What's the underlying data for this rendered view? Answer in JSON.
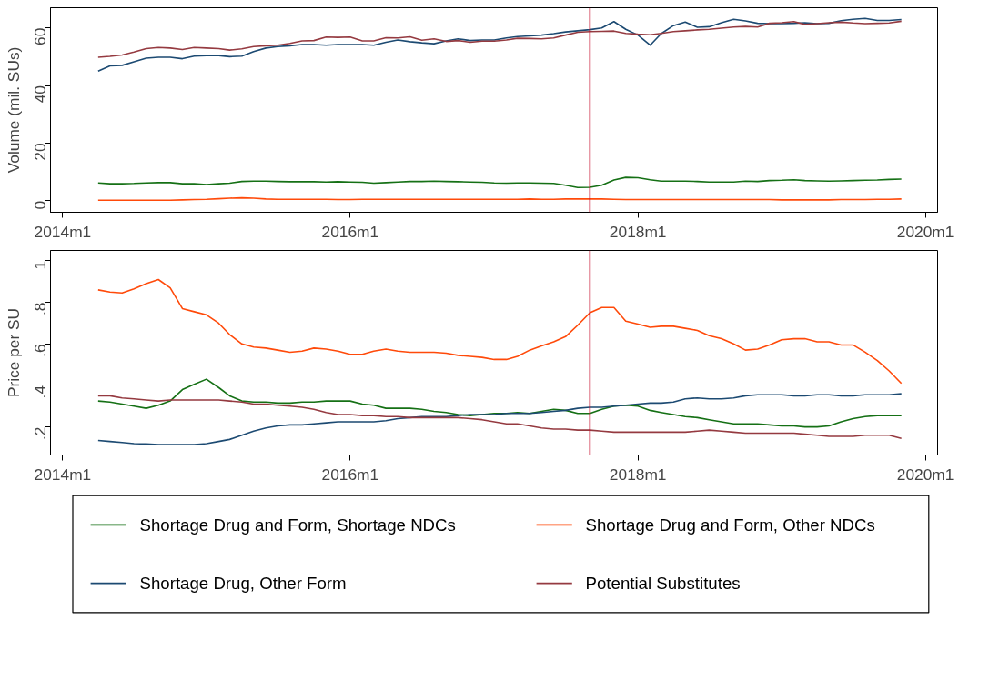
{
  "chart_data": [
    {
      "type": "line",
      "ylabel": "Volume (mil. SUs)",
      "x": [
        "2014-04",
        "2014-05",
        "2014-06",
        "2014-07",
        "2014-08",
        "2014-09",
        "2014-10",
        "2014-11",
        "2014-12",
        "2015-01",
        "2015-02",
        "2015-03",
        "2015-04",
        "2015-05",
        "2015-06",
        "2015-07",
        "2015-08",
        "2015-09",
        "2015-10",
        "2015-11",
        "2015-12",
        "2016-01",
        "2016-02",
        "2016-03",
        "2016-04",
        "2016-05",
        "2016-06",
        "2016-07",
        "2016-08",
        "2016-09",
        "2016-10",
        "2016-11",
        "2016-12",
        "2017-01",
        "2017-02",
        "2017-03",
        "2017-04",
        "2017-05",
        "2017-06",
        "2017-07",
        "2017-08",
        "2017-09",
        "2017-10",
        "2017-11",
        "2017-12",
        "2018-01",
        "2018-02",
        "2018-03",
        "2018-04",
        "2018-05",
        "2018-06",
        "2018-07",
        "2018-08",
        "2018-09",
        "2018-10",
        "2018-11",
        "2018-12",
        "2019-01",
        "2019-02",
        "2019-03",
        "2019-04",
        "2019-05",
        "2019-06",
        "2019-07",
        "2019-08",
        "2019-09",
        "2019-10",
        "2019-11"
      ],
      "xlim": [
        "2013-12",
        "2020-02"
      ],
      "ylim": [
        -4,
        67
      ],
      "xticks": [
        {
          "value": "2014-01",
          "label": "2014m1"
        },
        {
          "value": "2016-01",
          "label": "2016m1"
        },
        {
          "value": "2018-01",
          "label": "2018m1"
        },
        {
          "value": "2020-01",
          "label": "2020m1"
        }
      ],
      "yticks": [
        0,
        20,
        40,
        60
      ],
      "grid": false,
      "ref_lines": [
        {
          "axis": "x",
          "value": "2017-09",
          "color": "#c8102e"
        }
      ],
      "series": [
        {
          "color": "#157015",
          "values": [
            6.2,
            5.9,
            5.9,
            6.0,
            6.2,
            6.3,
            6.3,
            5.9,
            5.9,
            5.6,
            5.9,
            6.1,
            6.7,
            6.8,
            6.8,
            6.7,
            6.6,
            6.6,
            6.6,
            6.5,
            6.6,
            6.5,
            6.4,
            6.1,
            6.3,
            6.5,
            6.7,
            6.7,
            6.8,
            6.7,
            6.6,
            6.5,
            6.4,
            6.2,
            6.1,
            6.2,
            6.2,
            6.1,
            6.0,
            5.4,
            4.6,
            4.7,
            5.4,
            7.2,
            8.1,
            8.0,
            7.3,
            6.8,
            6.8,
            6.8,
            6.7,
            6.5,
            6.5,
            6.5,
            6.8,
            6.7,
            7.0,
            7.1,
            7.3,
            7.0,
            6.9,
            6.8,
            6.9,
            7.0,
            7.1,
            7.2,
            7.4,
            7.5
          ]
        },
        {
          "color": "#ff4a0a",
          "values": [
            0.2,
            0.2,
            0.2,
            0.2,
            0.2,
            0.2,
            0.2,
            0.3,
            0.4,
            0.5,
            0.7,
            0.9,
            1.0,
            0.9,
            0.6,
            0.5,
            0.5,
            0.5,
            0.5,
            0.5,
            0.4,
            0.4,
            0.5,
            0.5,
            0.5,
            0.5,
            0.5,
            0.5,
            0.5,
            0.5,
            0.5,
            0.5,
            0.5,
            0.5,
            0.5,
            0.5,
            0.6,
            0.5,
            0.5,
            0.6,
            0.6,
            0.6,
            0.6,
            0.5,
            0.4,
            0.4,
            0.4,
            0.4,
            0.4,
            0.4,
            0.4,
            0.4,
            0.4,
            0.4,
            0.4,
            0.4,
            0.4,
            0.3,
            0.3,
            0.3,
            0.3,
            0.3,
            0.4,
            0.4,
            0.4,
            0.5,
            0.5,
            0.6
          ]
        },
        {
          "color": "#1c4a72",
          "values": [
            45.0,
            46.8,
            47.0,
            48.2,
            49.5,
            49.8,
            49.8,
            49.3,
            50.2,
            50.4,
            50.4,
            50.0,
            50.2,
            51.8,
            53.0,
            53.5,
            53.8,
            54.2,
            54.2,
            54.0,
            54.2,
            54.2,
            54.2,
            54.0,
            55.0,
            55.8,
            55.2,
            54.8,
            54.5,
            55.5,
            56.2,
            55.6,
            55.8,
            55.8,
            56.5,
            57.0,
            57.2,
            57.5,
            58.0,
            58.6,
            59.0,
            59.4,
            60.0,
            62.2,
            59.5,
            57.5,
            54.0,
            58.0,
            60.8,
            62.0,
            60.2,
            60.4,
            61.8,
            63.0,
            62.4,
            61.6,
            61.5,
            61.5,
            61.6,
            61.8,
            61.5,
            61.6,
            62.5,
            63.0,
            63.3,
            62.6,
            62.6,
            62.9
          ]
        },
        {
          "color": "#953a40",
          "values": [
            49.8,
            50.1,
            50.6,
            51.6,
            52.8,
            53.2,
            53.0,
            52.5,
            53.2,
            53.0,
            52.8,
            52.3,
            52.7,
            53.5,
            53.8,
            54.0,
            54.6,
            55.5,
            55.6,
            56.8,
            56.7,
            56.8,
            55.5,
            55.5,
            56.6,
            56.5,
            56.9,
            55.7,
            56.2,
            55.3,
            55.6,
            55.0,
            55.4,
            55.4,
            55.8,
            56.4,
            56.3,
            56.2,
            56.5,
            57.5,
            58.5,
            58.7,
            58.8,
            58.9,
            58.1,
            57.8,
            57.6,
            58.1,
            58.7,
            59.0,
            59.3,
            59.5,
            59.9,
            60.3,
            60.5,
            60.3,
            61.6,
            61.8,
            62.2,
            61.2,
            61.5,
            61.8,
            62.0,
            61.7,
            61.5,
            61.6,
            61.7,
            62.3
          ]
        }
      ]
    },
    {
      "type": "line",
      "ylabel": "Price per SU",
      "x": [
        "2014-04",
        "2014-05",
        "2014-06",
        "2014-07",
        "2014-08",
        "2014-09",
        "2014-10",
        "2014-11",
        "2014-12",
        "2015-01",
        "2015-02",
        "2015-03",
        "2015-04",
        "2015-05",
        "2015-06",
        "2015-07",
        "2015-08",
        "2015-09",
        "2015-10",
        "2015-11",
        "2015-12",
        "2016-01",
        "2016-02",
        "2016-03",
        "2016-04",
        "2016-05",
        "2016-06",
        "2016-07",
        "2016-08",
        "2016-09",
        "2016-10",
        "2016-11",
        "2016-12",
        "2017-01",
        "2017-02",
        "2017-03",
        "2017-04",
        "2017-05",
        "2017-06",
        "2017-07",
        "2017-08",
        "2017-09",
        "2017-10",
        "2017-11",
        "2017-12",
        "2018-01",
        "2018-02",
        "2018-03",
        "2018-04",
        "2018-05",
        "2018-06",
        "2018-07",
        "2018-08",
        "2018-09",
        "2018-10",
        "2018-11",
        "2018-12",
        "2019-01",
        "2019-02",
        "2019-03",
        "2019-04",
        "2019-05",
        "2019-06",
        "2019-07",
        "2019-08",
        "2019-09",
        "2019-10",
        "2019-11"
      ],
      "xlim": [
        "2013-12",
        "2020-02"
      ],
      "ylim": [
        0.065,
        1.05
      ],
      "xticks": [
        {
          "value": "2014-01",
          "label": "2014m1"
        },
        {
          "value": "2016-01",
          "label": "2016m1"
        },
        {
          "value": "2018-01",
          "label": "2018m1"
        },
        {
          "value": "2020-01",
          "label": "2020m1"
        }
      ],
      "yticks": [
        {
          "value": 0.2,
          "label": ".2"
        },
        {
          "value": 0.4,
          "label": ".4"
        },
        {
          "value": 0.6,
          "label": ".6"
        },
        {
          "value": 0.8,
          "label": ".8"
        },
        1
      ],
      "grid": false,
      "legend": "bottom",
      "ref_lines": [
        {
          "axis": "x",
          "value": "2017-09",
          "color": "#c8102e"
        }
      ],
      "series": [
        {
          "name": "Shortage Drug and Form, Shortage NDCs",
          "color": "#157015",
          "values": [
            0.325,
            0.32,
            0.31,
            0.3,
            0.29,
            0.305,
            0.325,
            0.38,
            0.405,
            0.43,
            0.39,
            0.35,
            0.325,
            0.32,
            0.32,
            0.315,
            0.315,
            0.32,
            0.32,
            0.325,
            0.325,
            0.325,
            0.31,
            0.305,
            0.29,
            0.29,
            0.29,
            0.285,
            0.275,
            0.27,
            0.26,
            0.255,
            0.26,
            0.265,
            0.265,
            0.27,
            0.265,
            0.275,
            0.285,
            0.28,
            0.265,
            0.265,
            0.285,
            0.3,
            0.305,
            0.3,
            0.28,
            0.27,
            0.26,
            0.25,
            0.245,
            0.235,
            0.225,
            0.215,
            0.215,
            0.215,
            0.21,
            0.205,
            0.205,
            0.2,
            0.2,
            0.205,
            0.225,
            0.24,
            0.25,
            0.255,
            0.255,
            0.255
          ]
        },
        {
          "name": "Shortage Drug and Form, Other NDCs",
          "color": "#ff4a0a",
          "values": [
            0.86,
            0.85,
            0.845,
            0.865,
            0.89,
            0.91,
            0.87,
            0.77,
            0.755,
            0.74,
            0.7,
            0.645,
            0.6,
            0.585,
            0.58,
            0.57,
            0.56,
            0.565,
            0.58,
            0.575,
            0.565,
            0.55,
            0.55,
            0.565,
            0.575,
            0.565,
            0.56,
            0.56,
            0.56,
            0.555,
            0.545,
            0.54,
            0.535,
            0.525,
            0.525,
            0.54,
            0.57,
            0.59,
            0.61,
            0.635,
            0.69,
            0.75,
            0.775,
            0.775,
            0.71,
            0.695,
            0.68,
            0.685,
            0.685,
            0.675,
            0.665,
            0.64,
            0.625,
            0.6,
            0.57,
            0.575,
            0.595,
            0.62,
            0.625,
            0.625,
            0.61,
            0.61,
            0.595,
            0.595,
            0.56,
            0.52,
            0.47,
            0.41
          ]
        },
        {
          "name": "Shortage Drug, Other Form",
          "color": "#1c4a72",
          "values": [
            0.135,
            0.13,
            0.125,
            0.12,
            0.118,
            0.115,
            0.115,
            0.115,
            0.115,
            0.12,
            0.13,
            0.14,
            0.16,
            0.18,
            0.195,
            0.205,
            0.21,
            0.21,
            0.215,
            0.22,
            0.225,
            0.225,
            0.225,
            0.225,
            0.23,
            0.24,
            0.245,
            0.25,
            0.25,
            0.25,
            0.255,
            0.26,
            0.26,
            0.26,
            0.265,
            0.265,
            0.265,
            0.27,
            0.275,
            0.28,
            0.29,
            0.295,
            0.295,
            0.3,
            0.305,
            0.31,
            0.315,
            0.315,
            0.32,
            0.335,
            0.34,
            0.335,
            0.335,
            0.34,
            0.35,
            0.355,
            0.355,
            0.355,
            0.35,
            0.35,
            0.355,
            0.355,
            0.35,
            0.35,
            0.355,
            0.355,
            0.355,
            0.36
          ]
        },
        {
          "name": "Potential Substitutes",
          "color": "#953a40",
          "values": [
            0.35,
            0.35,
            0.34,
            0.335,
            0.33,
            0.325,
            0.33,
            0.33,
            0.33,
            0.33,
            0.33,
            0.325,
            0.32,
            0.31,
            0.31,
            0.305,
            0.3,
            0.295,
            0.285,
            0.27,
            0.26,
            0.26,
            0.255,
            0.255,
            0.25,
            0.25,
            0.245,
            0.245,
            0.245,
            0.245,
            0.245,
            0.24,
            0.235,
            0.225,
            0.215,
            0.215,
            0.205,
            0.195,
            0.19,
            0.19,
            0.185,
            0.185,
            0.18,
            0.175,
            0.175,
            0.175,
            0.175,
            0.175,
            0.175,
            0.175,
            0.18,
            0.185,
            0.18,
            0.175,
            0.17,
            0.17,
            0.17,
            0.17,
            0.17,
            0.165,
            0.16,
            0.155,
            0.155,
            0.155,
            0.16,
            0.16,
            0.16,
            0.145
          ]
        }
      ]
    }
  ]
}
